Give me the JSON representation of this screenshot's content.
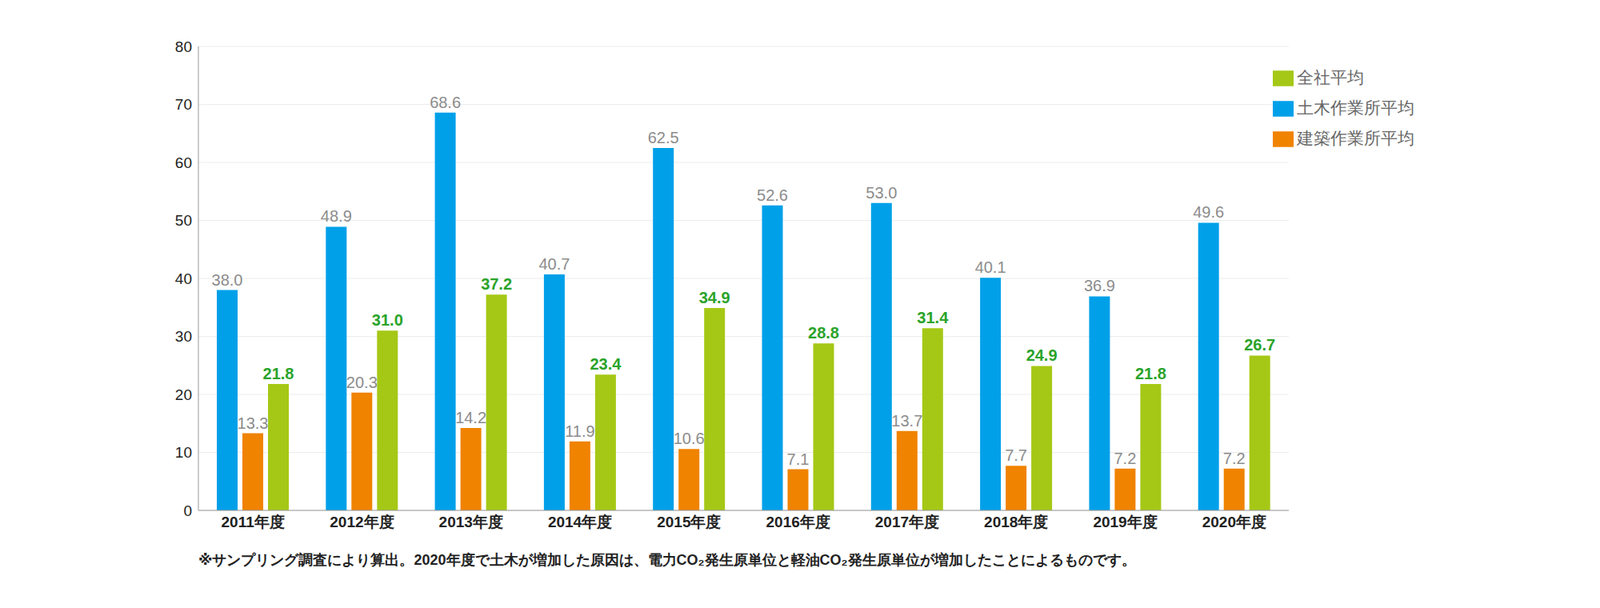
{
  "chart_data": {
    "type": "bar",
    "categories": [
      "2011年度",
      "2012年度",
      "2013年度",
      "2014年度",
      "2015年度",
      "2016年度",
      "2017年度",
      "2018年度",
      "2019年度",
      "2020年度"
    ],
    "series": [
      {
        "name": "土木作業所平均",
        "color": "#00a0e9",
        "values": [
          38.0,
          48.9,
          68.6,
          40.7,
          62.5,
          52.6,
          53.0,
          40.1,
          36.9,
          49.6
        ],
        "value_labels": [
          "38.0",
          "48.9",
          "68.6",
          "40.7",
          "62.5",
          "52.6",
          "53.0",
          "40.1",
          "36.9",
          "49.6"
        ]
      },
      {
        "name": "建築作業所平均",
        "color": "#f08300",
        "values": [
          13.3,
          20.3,
          14.2,
          11.9,
          10.6,
          7.1,
          13.7,
          7.7,
          7.2,
          7.2
        ],
        "value_labels": [
          "13.3",
          "20.3",
          "14.2",
          "11.9",
          "10.6",
          "7.1",
          "13.7",
          "7.7",
          "7.2",
          "7.2"
        ]
      },
      {
        "name": "全社平均",
        "color": "#a5c816",
        "values": [
          21.8,
          31.0,
          37.2,
          23.4,
          34.9,
          28.8,
          31.4,
          24.9,
          21.8,
          26.7
        ],
        "value_labels": [
          "21.8",
          "31.0",
          "37.2",
          "23.4",
          "34.9",
          "28.8",
          "31.4",
          "24.9",
          "21.8",
          "26.7"
        ]
      }
    ],
    "ylim": [
      0,
      80
    ],
    "yticks": [
      0,
      10,
      20,
      30,
      40,
      50,
      60,
      70,
      80
    ],
    "grid": true,
    "legend": "upper right",
    "data_labels": true,
    "footnote": "※サンプリング調査により算出。2020年度で土木が増加した原因は、電力CO₂発生原単位と軽油CO₂発生原単位が増加したことによるものです。"
  }
}
